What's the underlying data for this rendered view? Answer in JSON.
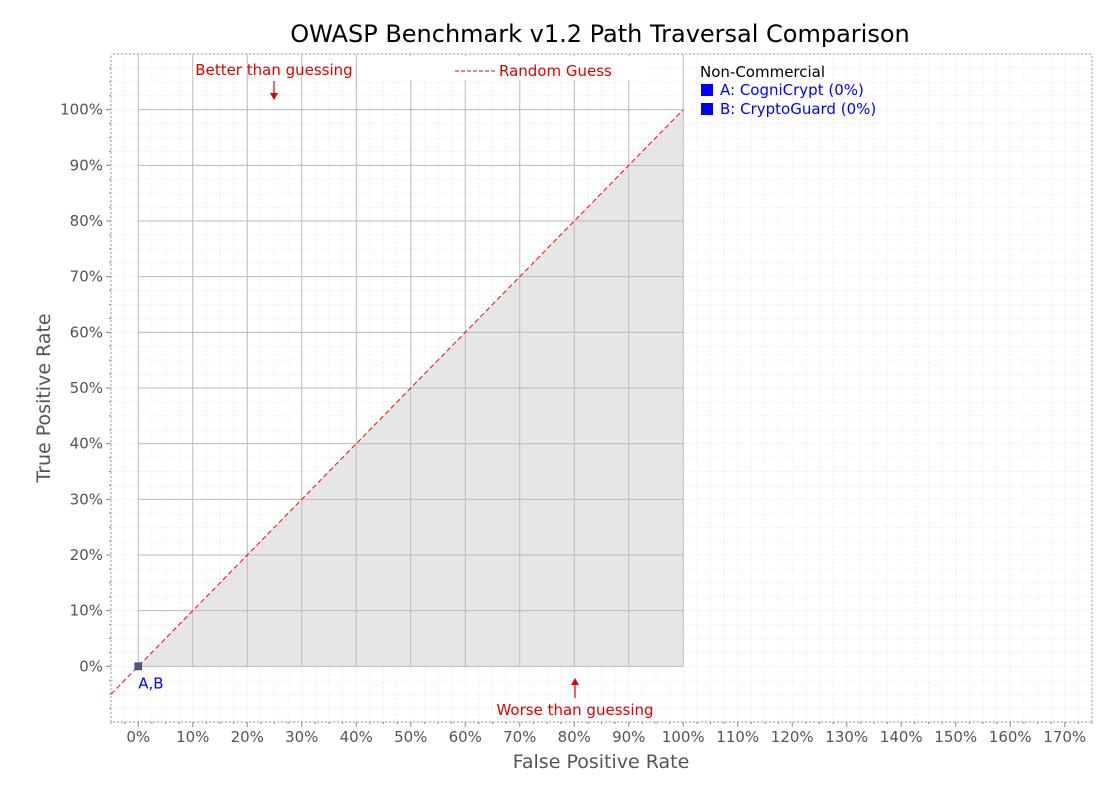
{
  "chart_data": {
    "type": "scatter",
    "title": "OWASP Benchmark v1.2 Path Traversal Comparison",
    "xlabel": "False Positive Rate",
    "ylabel": "True Positive Rate",
    "xlim": [
      -5,
      175
    ],
    "ylim": [
      -10,
      110
    ],
    "x_ticks": [
      "0%",
      "10%",
      "20%",
      "30%",
      "40%",
      "50%",
      "60%",
      "70%",
      "80%",
      "90%",
      "100%",
      "110%",
      "120%",
      "130%",
      "140%",
      "150%",
      "160%",
      "170%"
    ],
    "y_ticks": [
      "0%",
      "10%",
      "20%",
      "30%",
      "40%",
      "50%",
      "60%",
      "70%",
      "80%",
      "90%",
      "100%"
    ],
    "grid": true,
    "random_guess_label": "Random Guess",
    "annotations": {
      "better": "Better than guessing",
      "worse": "Worse than guessing"
    },
    "point_label": "A,B",
    "points": [
      {
        "label": "A",
        "x": 0,
        "y": 0
      },
      {
        "label": "B",
        "x": 0,
        "y": 0
      }
    ],
    "legend": {
      "heading": "Non-Commercial",
      "position": "top-right",
      "items": [
        "A: CogniCrypt (0%)",
        "B: CryptoGuard (0%)"
      ]
    },
    "colors": {
      "points": "#0000ff",
      "random_guess": "#ff0000",
      "shade": "#e6e6e6",
      "annotations": "#e00000"
    }
  }
}
